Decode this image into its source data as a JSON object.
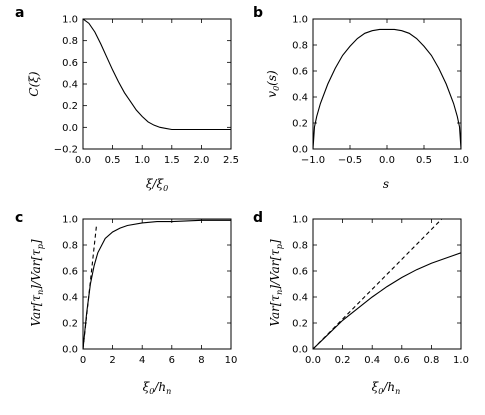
{
  "chart_data": [
    {
      "panel": "a",
      "type": "line",
      "xlabel": "ξ/ξ₀",
      "ylabel": "C(ξ)",
      "xlim": [
        0,
        2.5
      ],
      "ylim": [
        -0.2,
        1.0
      ],
      "xticks": [
        "0.0",
        "0.5",
        "1.0",
        "1.5",
        "2.0",
        "2.5"
      ],
      "yticks": [
        "−0.2",
        "0.0",
        "0.2",
        "0.4",
        "0.6",
        "0.8",
        "1.0"
      ],
      "series": [
        {
          "style": "solid",
          "x": [
            0.0,
            0.1,
            0.2,
            0.3,
            0.4,
            0.5,
            0.6,
            0.7,
            0.8,
            0.9,
            1.0,
            1.1,
            1.2,
            1.3,
            1.4,
            1.5,
            1.75,
            2.0,
            2.25,
            2.5
          ],
          "y": [
            1.0,
            0.96,
            0.88,
            0.77,
            0.65,
            0.53,
            0.42,
            0.32,
            0.24,
            0.16,
            0.1,
            0.05,
            0.02,
            0.0,
            -0.01,
            -0.02,
            -0.02,
            -0.02,
            -0.02,
            -0.02
          ]
        }
      ]
    },
    {
      "panel": "b",
      "type": "line",
      "xlabel": "s",
      "ylabel": "v₀(s)",
      "xlim": [
        -1.0,
        1.0
      ],
      "ylim": [
        0.0,
        1.0
      ],
      "xticks": [
        "−1.0",
        "−0.5",
        "0.0",
        "0.5",
        "1.0"
      ],
      "yticks": [
        "0.0",
        "0.2",
        "0.4",
        "0.6",
        "0.8",
        "1.0"
      ],
      "series": [
        {
          "style": "solid",
          "x": [
            -1.0,
            -0.98,
            -0.95,
            -0.9,
            -0.8,
            -0.7,
            -0.6,
            -0.5,
            -0.4,
            -0.3,
            -0.2,
            -0.1,
            0.0,
            0.1,
            0.2,
            0.3,
            0.4,
            0.5,
            0.6,
            0.7,
            0.8,
            0.9,
            0.95,
            0.98,
            1.0
          ],
          "y": [
            0.0,
            0.17,
            0.25,
            0.35,
            0.5,
            0.62,
            0.72,
            0.79,
            0.85,
            0.89,
            0.91,
            0.92,
            0.92,
            0.92,
            0.91,
            0.89,
            0.85,
            0.79,
            0.72,
            0.62,
            0.5,
            0.35,
            0.25,
            0.17,
            0.0
          ]
        }
      ]
    },
    {
      "panel": "c",
      "type": "line",
      "xlabel": "ξ₀/hₙ",
      "ylabel": "Var[τₙ]/Var[τₚ]",
      "xlim": [
        0,
        10
      ],
      "ylim": [
        0.0,
        1.0
      ],
      "xticks": [
        "0",
        "2",
        "4",
        "6",
        "8",
        "10"
      ],
      "yticks": [
        "0.0",
        "0.2",
        "0.4",
        "0.6",
        "0.8",
        "1.0"
      ],
      "series": [
        {
          "style": "solid",
          "x": [
            0.0,
            0.25,
            0.5,
            0.75,
            1.0,
            1.5,
            2.0,
            2.5,
            3.0,
            4.0,
            5.0,
            6.0,
            8.0,
            10.0
          ],
          "y": [
            0.0,
            0.28,
            0.5,
            0.64,
            0.74,
            0.85,
            0.9,
            0.93,
            0.95,
            0.97,
            0.98,
            0.98,
            0.99,
            0.99
          ]
        },
        {
          "style": "dashed",
          "x": [
            0.0,
            0.92
          ],
          "y": [
            0.0,
            0.96
          ]
        }
      ]
    },
    {
      "panel": "d",
      "type": "line",
      "xlabel": "ξ₀/hₙ",
      "ylabel": "Var[τₙ]/Var[τₚ]",
      "xlim": [
        0.0,
        1.0
      ],
      "ylim": [
        0.0,
        1.0
      ],
      "xticks": [
        "0.0",
        "0.2",
        "0.4",
        "0.6",
        "0.8",
        "1.0"
      ],
      "yticks": [
        "0.0",
        "0.2",
        "0.4",
        "0.6",
        "0.8",
        "1.0"
      ],
      "series": [
        {
          "style": "solid",
          "x": [
            0.0,
            0.1,
            0.2,
            0.3,
            0.4,
            0.5,
            0.6,
            0.7,
            0.8,
            0.9,
            1.0
          ],
          "y": [
            0.0,
            0.11,
            0.22,
            0.31,
            0.4,
            0.48,
            0.55,
            0.61,
            0.66,
            0.7,
            0.74
          ]
        },
        {
          "style": "dashed",
          "x": [
            0.0,
            0.87
          ],
          "y": [
            0.0,
            1.0
          ]
        }
      ]
    }
  ]
}
